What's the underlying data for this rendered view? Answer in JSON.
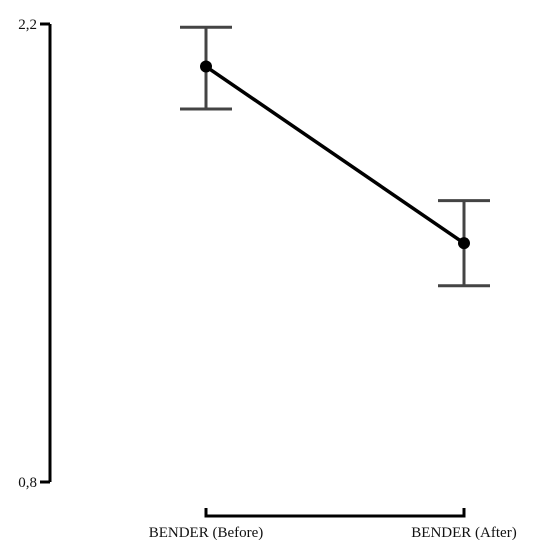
{
  "chart_data": {
    "type": "line",
    "title": "",
    "xlabel": "",
    "ylabel": "",
    "categories": [
      "BENDER (Before)",
      "BENDER (After)"
    ],
    "series": [
      {
        "values": [
          2.07,
          1.53
        ],
        "error_low": [
          1.94,
          1.4
        ],
        "error_high": [
          2.19,
          1.66
        ]
      }
    ],
    "ylim": [
      0.8,
      2.2
    ],
    "y_tick_labels": [
      "0,8",
      "2,2"
    ],
    "y_tick_values": [
      0.8,
      2.2
    ],
    "grid": false,
    "colors": {
      "line": "#000000",
      "errorbar": "#444444",
      "axis": "#000000"
    }
  }
}
